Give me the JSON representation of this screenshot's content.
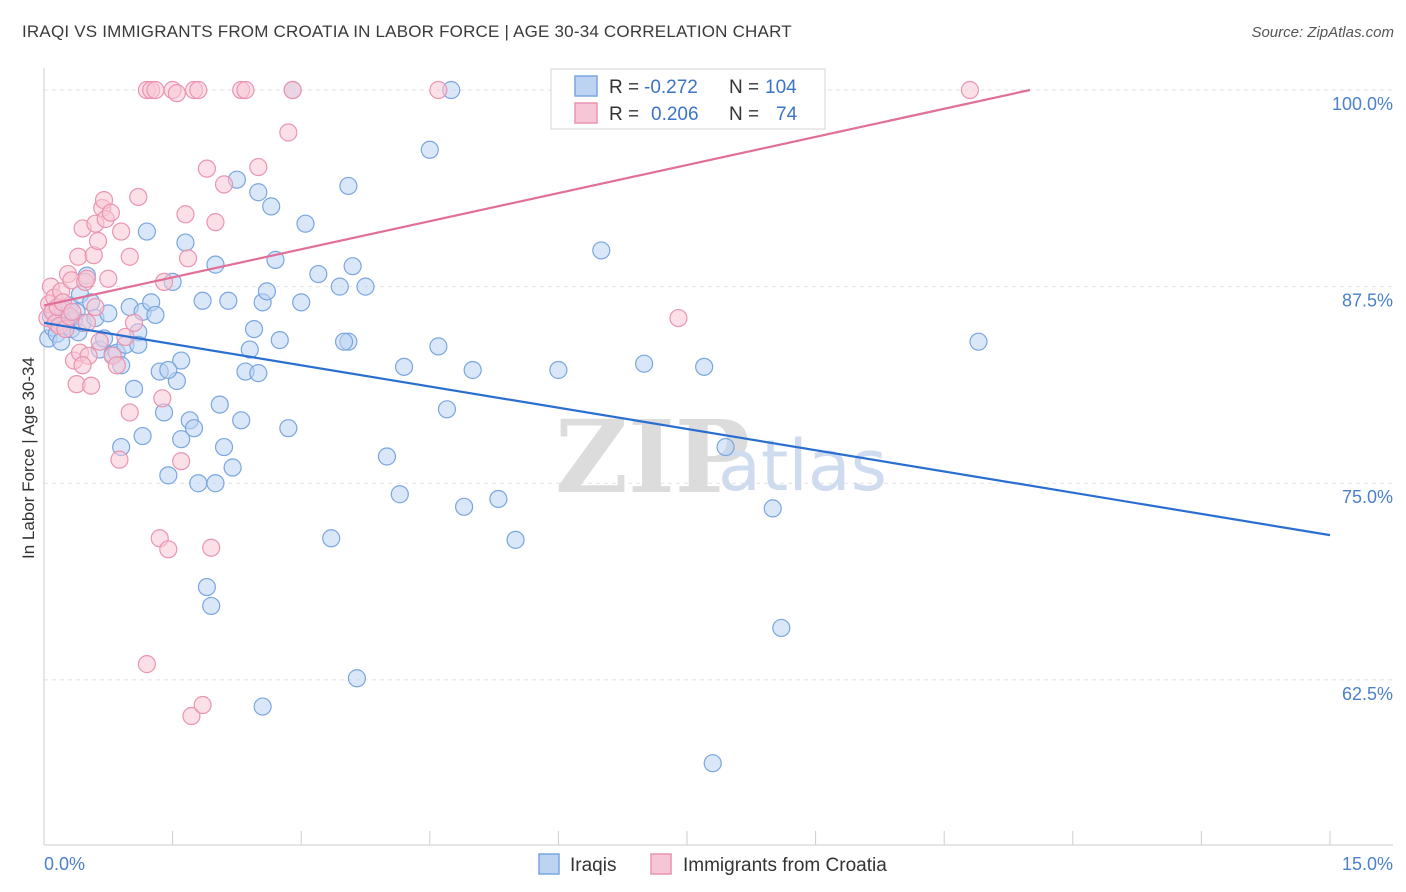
{
  "chart_data": {
    "type": "scatter",
    "title": "IRAQI VS IMMIGRANTS FROM CROATIA IN LABOR FORCE | AGE 30-34 CORRELATION CHART",
    "source": "Source: ZipAtlas.com",
    "xlabel": "",
    "ylabel": "In Labor Force | Age 30-34",
    "xlim": [
      0,
      15
    ],
    "ylim": [
      52,
      100.7
    ],
    "x_tick_labels": [
      "0.0%",
      "15.0%"
    ],
    "y_ticks": [
      62.5,
      75.0,
      87.5,
      100.0
    ],
    "y_tick_labels": [
      "62.5%",
      "75.0%",
      "87.5%",
      "100.0%"
    ],
    "grid": true,
    "watermark": {
      "zip": "ZIP",
      "atlas": "atlas"
    },
    "legend_box": [
      {
        "r_label": "R =",
        "r_value": "-0.272",
        "n_label": "N =",
        "n_value": "104"
      },
      {
        "r_label": "R =",
        "r_value": "0.206",
        "n_label": "N =",
        "n_value": "74"
      }
    ],
    "series": [
      {
        "name": "Iraqis",
        "color": "#7aa6e0",
        "fill": "#bcd3f2",
        "line_color": "#2a6fd0",
        "trend": {
          "x": [
            0,
            15
          ],
          "y": [
            85.2,
            71.7
          ]
        },
        "points": [
          [
            0.05,
            84.2
          ],
          [
            0.08,
            85.6
          ],
          [
            0.1,
            84.9
          ],
          [
            0.12,
            85.8
          ],
          [
            0.15,
            84.5
          ],
          [
            0.18,
            85.3
          ],
          [
            0.2,
            84.0
          ],
          [
            0.22,
            86.1
          ],
          [
            0.25,
            85.0
          ],
          [
            0.28,
            85.7
          ],
          [
            0.3,
            86.3
          ],
          [
            0.32,
            84.8
          ],
          [
            0.35,
            85.4
          ],
          [
            0.38,
            85.9
          ],
          [
            0.4,
            84.6
          ],
          [
            0.42,
            87.0
          ],
          [
            0.45,
            85.2
          ],
          [
            0.5,
            88.2
          ],
          [
            0.55,
            86.5
          ],
          [
            0.6,
            85.5
          ],
          [
            0.65,
            83.5
          ],
          [
            0.7,
            84.2
          ],
          [
            0.75,
            85.8
          ],
          [
            0.8,
            83.2
          ],
          [
            0.85,
            83.3
          ],
          [
            0.9,
            82.5
          ],
          [
            0.95,
            83.8
          ],
          [
            1.0,
            86.2
          ],
          [
            1.05,
            81.0
          ],
          [
            1.1,
            84.6
          ],
          [
            1.15,
            85.9
          ],
          [
            1.2,
            91.0
          ],
          [
            1.25,
            86.5
          ],
          [
            1.3,
            85.7
          ],
          [
            1.35,
            82.1
          ],
          [
            1.4,
            79.5
          ],
          [
            1.45,
            75.5
          ],
          [
            1.5,
            87.8
          ],
          [
            1.55,
            81.5
          ],
          [
            1.6,
            82.8
          ],
          [
            1.65,
            90.3
          ],
          [
            1.7,
            79.0
          ],
          [
            1.75,
            78.5
          ],
          [
            1.8,
            75.0
          ],
          [
            1.85,
            86.6
          ],
          [
            1.9,
            68.4
          ],
          [
            1.95,
            67.2
          ],
          [
            2.0,
            88.9
          ],
          [
            2.05,
            80.0
          ],
          [
            2.1,
            77.3
          ],
          [
            2.15,
            86.6
          ],
          [
            2.2,
            76.0
          ],
          [
            2.25,
            94.3
          ],
          [
            2.3,
            79.0
          ],
          [
            2.35,
            82.1
          ],
          [
            2.4,
            83.5
          ],
          [
            2.45,
            84.8
          ],
          [
            2.5,
            93.5
          ],
          [
            2.55,
            86.5
          ],
          [
            2.6,
            87.2
          ],
          [
            2.65,
            92.6
          ],
          [
            2.7,
            89.2
          ],
          [
            2.75,
            84.1
          ],
          [
            2.85,
            78.5
          ],
          [
            2.9,
            100.0
          ],
          [
            3.0,
            86.5
          ],
          [
            3.05,
            91.5
          ],
          [
            3.2,
            88.3
          ],
          [
            3.35,
            71.5
          ],
          [
            3.45,
            87.5
          ],
          [
            3.55,
            84.0
          ],
          [
            3.6,
            88.8
          ],
          [
            3.65,
            62.6
          ],
          [
            3.75,
            87.5
          ],
          [
            3.55,
            93.9
          ],
          [
            4.0,
            76.7
          ],
          [
            4.15,
            74.3
          ],
          [
            4.2,
            82.4
          ],
          [
            4.5,
            96.2
          ],
          [
            4.6,
            83.7
          ],
          [
            4.7,
            79.7
          ],
          [
            4.75,
            100.0
          ],
          [
            4.9,
            73.5
          ],
          [
            5.0,
            82.2
          ],
          [
            5.3,
            74.0
          ],
          [
            5.5,
            71.4
          ],
          [
            6.0,
            82.2
          ],
          [
            6.5,
            89.8
          ],
          [
            7.0,
            82.6
          ],
          [
            7.7,
            82.4
          ],
          [
            7.8,
            57.2
          ],
          [
            7.95,
            77.3
          ],
          [
            8.5,
            73.4
          ],
          [
            8.6,
            65.8
          ],
          [
            10.9,
            84.0
          ],
          [
            2.0,
            75.0
          ],
          [
            1.15,
            78.0
          ],
          [
            1.6,
            77.8
          ],
          [
            2.5,
            82.0
          ],
          [
            0.9,
            77.3
          ],
          [
            1.1,
            83.8
          ],
          [
            2.55,
            60.8
          ],
          [
            1.45,
            82.2
          ],
          [
            3.5,
            84.0
          ]
        ]
      },
      {
        "name": "Immigrants from Croatia",
        "color": "#ea94b1",
        "fill": "#f7c6d6",
        "line_color": "#e0709a",
        "trend": {
          "x": [
            0,
            11.5
          ],
          "y": [
            86.3,
            100.0
          ]
        },
        "points": [
          [
            0.04,
            85.5
          ],
          [
            0.06,
            86.4
          ],
          [
            0.08,
            87.5
          ],
          [
            0.1,
            85.9
          ],
          [
            0.12,
            86.8
          ],
          [
            0.14,
            85.2
          ],
          [
            0.16,
            86.2
          ],
          [
            0.18,
            85.0
          ],
          [
            0.2,
            87.2
          ],
          [
            0.22,
            86.5
          ],
          [
            0.25,
            84.8
          ],
          [
            0.28,
            88.3
          ],
          [
            0.3,
            85.6
          ],
          [
            0.32,
            87.9
          ],
          [
            0.35,
            82.8
          ],
          [
            0.38,
            81.3
          ],
          [
            0.4,
            89.4
          ],
          [
            0.42,
            83.3
          ],
          [
            0.45,
            91.2
          ],
          [
            0.48,
            87.8
          ],
          [
            0.5,
            85.2
          ],
          [
            0.52,
            83.1
          ],
          [
            0.55,
            81.2
          ],
          [
            0.58,
            89.5
          ],
          [
            0.6,
            91.5
          ],
          [
            0.63,
            90.4
          ],
          [
            0.65,
            84.0
          ],
          [
            0.68,
            92.5
          ],
          [
            0.7,
            93.0
          ],
          [
            0.72,
            91.8
          ],
          [
            0.75,
            88.0
          ],
          [
            0.78,
            92.2
          ],
          [
            0.8,
            83.1
          ],
          [
            0.85,
            82.5
          ],
          [
            0.88,
            76.5
          ],
          [
            0.9,
            91.0
          ],
          [
            0.95,
            84.3
          ],
          [
            1.0,
            89.4
          ],
          [
            1.05,
            85.2
          ],
          [
            1.1,
            93.2
          ],
          [
            1.2,
            100.0
          ],
          [
            1.25,
            100.0
          ],
          [
            1.3,
            100.0
          ],
          [
            1.35,
            71.5
          ],
          [
            1.38,
            80.4
          ],
          [
            1.4,
            87.8
          ],
          [
            1.45,
            70.8
          ],
          [
            1.5,
            100.0
          ],
          [
            1.55,
            99.8
          ],
          [
            1.6,
            76.4
          ],
          [
            1.65,
            92.1
          ],
          [
            1.68,
            89.3
          ],
          [
            1.72,
            60.2
          ],
          [
            1.75,
            100.0
          ],
          [
            1.8,
            100.0
          ],
          [
            1.85,
            60.9
          ],
          [
            1.9,
            95.0
          ],
          [
            1.95,
            70.9
          ],
          [
            2.0,
            91.6
          ],
          [
            2.1,
            94.0
          ],
          [
            2.3,
            100.0
          ],
          [
            2.35,
            100.0
          ],
          [
            2.5,
            95.1
          ],
          [
            2.85,
            97.3
          ],
          [
            2.9,
            100.0
          ],
          [
            4.6,
            100.0
          ],
          [
            7.4,
            85.5
          ],
          [
            10.8,
            100.0
          ],
          [
            1.2,
            63.5
          ],
          [
            0.5,
            88.0
          ],
          [
            0.6,
            86.2
          ],
          [
            0.33,
            85.9
          ],
          [
            0.45,
            82.5
          ],
          [
            1.0,
            79.5
          ]
        ]
      }
    ]
  }
}
